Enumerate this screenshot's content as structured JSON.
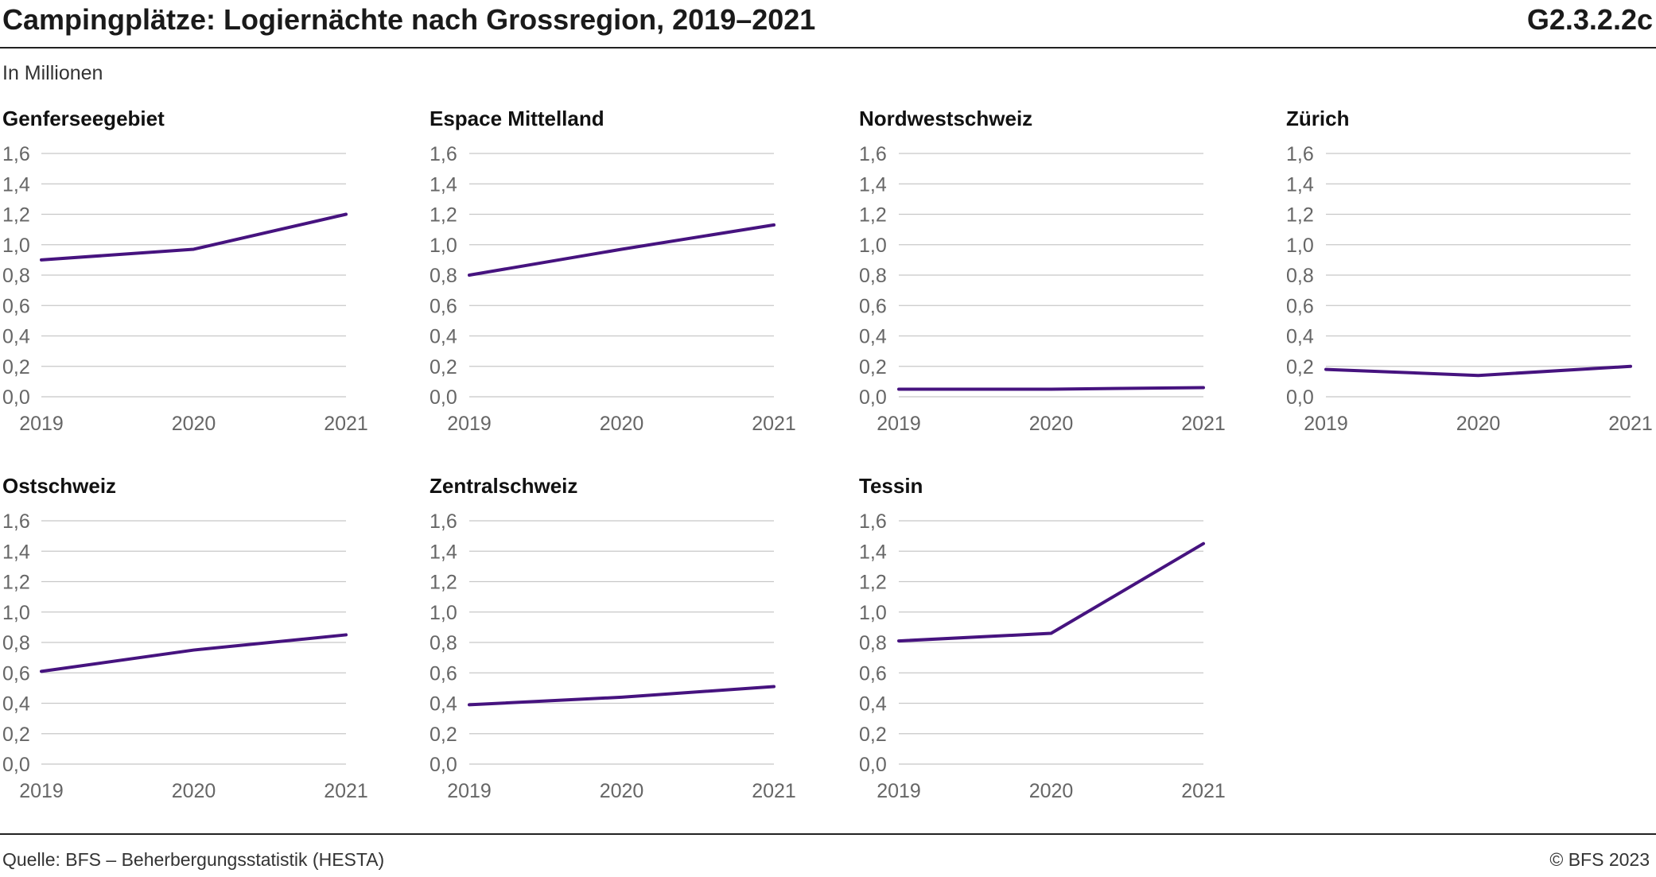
{
  "header": {
    "title": "Campingplätze: Logiernächte nach Grossregion, 2019–2021",
    "code": "G2.3.2.2c",
    "unit": "In Millionen"
  },
  "footer": {
    "source": "Quelle: BFS – Beherbergungsstatistik (HESTA)",
    "copyright": "© BFS 2023"
  },
  "colors": {
    "series": "#46137f",
    "grid": "#c8c8c8",
    "text": "#1a1a1a"
  },
  "chart_data": [
    {
      "type": "line",
      "title": "Genferseegebiet",
      "x": [
        "2019",
        "2020",
        "2021"
      ],
      "values": [
        0.9,
        0.97,
        1.2
      ],
      "ylim": [
        0,
        1.6
      ],
      "yticks": [
        "0,0",
        "0,2",
        "0,4",
        "0,6",
        "0,8",
        "1,0",
        "1,2",
        "1,4",
        "1,6"
      ],
      "grid": true
    },
    {
      "type": "line",
      "title": "Espace Mittelland",
      "x": [
        "2019",
        "2020",
        "2021"
      ],
      "values": [
        0.8,
        0.97,
        1.13
      ],
      "ylim": [
        0,
        1.6
      ],
      "yticks": [
        "0,0",
        "0,2",
        "0,4",
        "0,6",
        "0,8",
        "1,0",
        "1,2",
        "1,4",
        "1,6"
      ],
      "grid": true
    },
    {
      "type": "line",
      "title": "Nordwestschweiz",
      "x": [
        "2019",
        "2020",
        "2021"
      ],
      "values": [
        0.05,
        0.05,
        0.06
      ],
      "ylim": [
        0,
        1.6
      ],
      "yticks": [
        "0,0",
        "0,2",
        "0,4",
        "0,6",
        "0,8",
        "1,0",
        "1,2",
        "1,4",
        "1,6"
      ],
      "grid": true
    },
    {
      "type": "line",
      "title": "Zürich",
      "x": [
        "2019",
        "2020",
        "2021"
      ],
      "values": [
        0.18,
        0.14,
        0.2
      ],
      "ylim": [
        0,
        1.6
      ],
      "yticks": [
        "0,0",
        "0,2",
        "0,4",
        "0,6",
        "0,8",
        "1,0",
        "1,2",
        "1,4",
        "1,6"
      ],
      "grid": true
    },
    {
      "type": "line",
      "title": "Ostschweiz",
      "x": [
        "2019",
        "2020",
        "2021"
      ],
      "values": [
        0.61,
        0.75,
        0.85
      ],
      "ylim": [
        0,
        1.6
      ],
      "yticks": [
        "0,0",
        "0,2",
        "0,4",
        "0,6",
        "0,8",
        "1,0",
        "1,2",
        "1,4",
        "1,6"
      ],
      "grid": true
    },
    {
      "type": "line",
      "title": "Zentralschweiz",
      "x": [
        "2019",
        "2020",
        "2021"
      ],
      "values": [
        0.39,
        0.44,
        0.51
      ],
      "ylim": [
        0,
        1.6
      ],
      "yticks": [
        "0,0",
        "0,2",
        "0,4",
        "0,6",
        "0,8",
        "1,0",
        "1,2",
        "1,4",
        "1,6"
      ],
      "grid": true
    },
    {
      "type": "line",
      "title": "Tessin",
      "x": [
        "2019",
        "2020",
        "2021"
      ],
      "values": [
        0.81,
        0.86,
        1.45
      ],
      "ylim": [
        0,
        1.6
      ],
      "yticks": [
        "0,0",
        "0,2",
        "0,4",
        "0,6",
        "0,8",
        "1,0",
        "1,2",
        "1,4",
        "1,6"
      ],
      "grid": true
    }
  ]
}
